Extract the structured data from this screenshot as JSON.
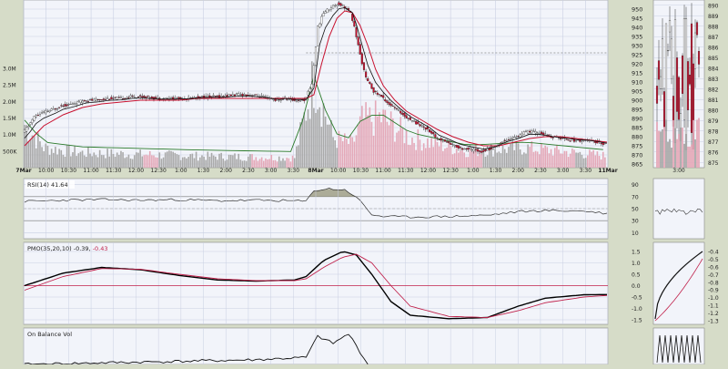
{
  "chart_data": [
    {
      "type": "candlestick",
      "panel": "price-main",
      "x_tick_labels": [
        "7Mar",
        "10:00",
        "10:30",
        "11:00",
        "11:30",
        "12:00",
        "12:30",
        "1:00",
        "1:30",
        "2:00",
        "2:30",
        "3:00",
        "3:30",
        "8Mar",
        "10:00",
        "10:30",
        "11:00",
        "11:30",
        "12:00",
        "12:30",
        "1:00",
        "1:30",
        "2:00",
        "2:30",
        "3:00",
        "3:30",
        "11Mar"
      ],
      "y_tick_labels": [
        "950",
        "945",
        "940",
        "935",
        "930",
        "925",
        "920",
        "915",
        "910",
        "905",
        "900",
        "895",
        "890",
        "885",
        "880",
        "875",
        "870",
        "865"
      ],
      "ylim": [
        863,
        955
      ],
      "ref_line": 926,
      "volume_tick_labels": [
        "3.0M",
        "2.5M",
        "2.0M",
        "1.5M",
        "1.0M",
        "500K"
      ],
      "volume_max": 3300000,
      "price_path": [
        [
          0,
          882
        ],
        [
          3,
          886
        ],
        [
          6,
          891
        ],
        [
          10,
          893
        ],
        [
          16,
          895
        ],
        [
          20,
          897
        ],
        [
          26,
          898
        ],
        [
          32,
          900
        ],
        [
          38,
          900
        ],
        [
          44,
          901
        ],
        [
          50,
          901
        ],
        [
          56,
          902
        ],
        [
          62,
          902
        ],
        [
          70,
          901
        ],
        [
          78,
          901
        ],
        [
          86,
          901
        ],
        [
          94,
          902
        ],
        [
          102,
          902
        ],
        [
          110,
          903
        ],
        [
          118,
          903
        ],
        [
          124,
          902
        ],
        [
          128,
          901
        ],
        [
          132,
          900
        ],
        [
          136,
          901
        ],
        [
          140,
          900
        ],
        [
          146,
          900
        ],
        [
          150,
          909
        ],
        [
          153,
          940
        ],
        [
          156,
          948
        ],
        [
          160,
          951
        ],
        [
          163,
          953
        ],
        [
          166,
          952
        ],
        [
          170,
          948
        ],
        [
          172,
          940
        ],
        [
          175,
          925
        ],
        [
          178,
          912
        ],
        [
          182,
          905
        ],
        [
          186,
          902
        ],
        [
          190,
          898
        ],
        [
          195,
          894
        ],
        [
          200,
          890
        ],
        [
          205,
          887
        ],
        [
          210,
          884
        ],
        [
          215,
          879
        ],
        [
          220,
          877
        ],
        [
          226,
          874
        ],
        [
          232,
          873
        ],
        [
          238,
          872
        ],
        [
          244,
          874
        ],
        [
          250,
          878
        ],
        [
          256,
          880
        ],
        [
          262,
          883
        ],
        [
          268,
          882
        ],
        [
          274,
          880
        ],
        [
          280,
          879
        ],
        [
          286,
          878
        ],
        [
          292,
          878
        ],
        [
          298,
          877
        ],
        [
          302,
          876
        ]
      ],
      "ema_path": [
        [
          0,
          875
        ],
        [
          10,
          886
        ],
        [
          20,
          892
        ],
        [
          30,
          896
        ],
        [
          40,
          898
        ],
        [
          50,
          899
        ],
        [
          60,
          900
        ],
        [
          70,
          900
        ],
        [
          80,
          900
        ],
        [
          90,
          901
        ],
        [
          100,
          901
        ],
        [
          110,
          901
        ],
        [
          120,
          901
        ],
        [
          130,
          901
        ],
        [
          140,
          901
        ],
        [
          146,
          901
        ],
        [
          150,
          903
        ],
        [
          154,
          920
        ],
        [
          158,
          935
        ],
        [
          162,
          945
        ],
        [
          166,
          949
        ],
        [
          170,
          948
        ],
        [
          174,
          941
        ],
        [
          178,
          930
        ],
        [
          182,
          917
        ],
        [
          186,
          908
        ],
        [
          192,
          900
        ],
        [
          198,
          894
        ],
        [
          206,
          889
        ],
        [
          214,
          884
        ],
        [
          222,
          880
        ],
        [
          230,
          877
        ],
        [
          238,
          875
        ],
        [
          246,
          875
        ],
        [
          254,
          877
        ],
        [
          262,
          879
        ],
        [
          270,
          880
        ],
        [
          278,
          880
        ],
        [
          286,
          879
        ],
        [
          294,
          878
        ],
        [
          302,
          877
        ]
      ],
      "volume_profile": [
        [
          0,
          1300000
        ],
        [
          10,
          600000
        ],
        [
          30,
          450000
        ],
        [
          60,
          400000
        ],
        [
          90,
          350000
        ],
        [
          120,
          320000
        ],
        [
          140,
          300000
        ],
        [
          150,
          2700000
        ],
        [
          160,
          900000
        ],
        [
          170,
          700000
        ],
        [
          175,
          1400000
        ],
        [
          185,
          1500000
        ],
        [
          200,
          900000
        ],
        [
          230,
          500000
        ],
        [
          260,
          600000
        ],
        [
          302,
          350000
        ]
      ]
    },
    {
      "type": "line",
      "panel": "rsi",
      "label": "RSI(14) 41.64",
      "y_tick_labels": [
        "90",
        "70",
        "50",
        "30",
        "10"
      ],
      "ylim": [
        0,
        100
      ],
      "values": [
        [
          0,
          62
        ],
        [
          20,
          64
        ],
        [
          40,
          65
        ],
        [
          60,
          64
        ],
        [
          80,
          65
        ],
        [
          100,
          63
        ],
        [
          120,
          64
        ],
        [
          140,
          63
        ],
        [
          146,
          62
        ],
        [
          150,
          80
        ],
        [
          158,
          83
        ],
        [
          166,
          81
        ],
        [
          172,
          70
        ],
        [
          176,
          55
        ],
        [
          180,
          40
        ],
        [
          186,
          37
        ],
        [
          200,
          36
        ],
        [
          220,
          37
        ],
        [
          240,
          39
        ],
        [
          256,
          45
        ],
        [
          270,
          47
        ],
        [
          290,
          46
        ],
        [
          302,
          42
        ]
      ]
    },
    {
      "type": "line",
      "panel": "pmo",
      "label_prefix": "PMO(35,20,10) ",
      "value_1": "-0.39",
      "sep": ", ",
      "value_2": "-0.43",
      "y_tick_labels": [
        "1.5",
        "1.0",
        "0.5",
        "0.0",
        "-0.5",
        "-1.0",
        "-1.5"
      ],
      "ylim": [
        -1.7,
        1.9
      ],
      "series": [
        {
          "role": "pmo",
          "color": "#000000",
          "values": [
            [
              0,
              0.0
            ],
            [
              20,
              0.55
            ],
            [
              40,
              0.8
            ],
            [
              60,
              0.7
            ],
            [
              80,
              0.45
            ],
            [
              100,
              0.25
            ],
            [
              120,
              0.2
            ],
            [
              140,
              0.25
            ],
            [
              146,
              0.4
            ],
            [
              155,
              1.1
            ],
            [
              165,
              1.5
            ],
            [
              172,
              1.35
            ],
            [
              180,
              0.5
            ],
            [
              190,
              -0.7
            ],
            [
              200,
              -1.3
            ],
            [
              220,
              -1.45
            ],
            [
              240,
              -1.4
            ],
            [
              256,
              -0.9
            ],
            [
              270,
              -0.55
            ],
            [
              290,
              -0.4
            ],
            [
              302,
              -0.39
            ]
          ]
        },
        {
          "role": "signal",
          "color": "#c0204a",
          "values": [
            [
              0,
              -0.2
            ],
            [
              20,
              0.4
            ],
            [
              40,
              0.75
            ],
            [
              60,
              0.72
            ],
            [
              80,
              0.5
            ],
            [
              100,
              0.3
            ],
            [
              120,
              0.22
            ],
            [
              140,
              0.22
            ],
            [
              146,
              0.3
            ],
            [
              155,
              0.8
            ],
            [
              165,
              1.25
            ],
            [
              172,
              1.38
            ],
            [
              180,
              1.0
            ],
            [
              190,
              0.0
            ],
            [
              200,
              -0.9
            ],
            [
              220,
              -1.35
            ],
            [
              240,
              -1.4
            ],
            [
              256,
              -1.1
            ],
            [
              270,
              -0.75
            ],
            [
              290,
              -0.5
            ],
            [
              302,
              -0.43
            ]
          ]
        }
      ],
      "side_tick_labels": [
        "-0.4",
        "-0.5",
        "-0.6",
        "-0.7",
        "-0.8",
        "-0.9",
        "-1.0",
        "-1.1",
        "-1.2",
        "-1.3"
      ]
    },
    {
      "type": "line",
      "panel": "obv",
      "label": "On Balance Vol",
      "values": [
        [
          0,
          0
        ],
        [
          60,
          5
        ],
        [
          120,
          10
        ],
        [
          146,
          15
        ],
        [
          152,
          60
        ],
        [
          160,
          45
        ],
        [
          168,
          65
        ],
        [
          172,
          40
        ],
        [
          178,
          0
        ]
      ]
    }
  ],
  "side_panel": {
    "price_tick_labels": [
      "890",
      "889",
      "888",
      "887",
      "886",
      "885",
      "884",
      "883",
      "882",
      "881",
      "880",
      "879",
      "878",
      "877",
      "876",
      "875"
    ],
    "x_tick_labels": [
      "3:00"
    ]
  },
  "colors": {
    "up": "#ffffff",
    "down": "#c8102e",
    "wick": "#333333",
    "ema_black": "#111111",
    "ema_red": "#c8102e",
    "volume_ma": "#2a7a2a",
    "volume_gray": "#a9a9a9",
    "volume_pink": "#e4a8b8",
    "rsi_fill": "#9a9a80",
    "panel_bg": "#f2f4fa",
    "grid": "#c9cfe2",
    "background": "#d6dcc8"
  }
}
